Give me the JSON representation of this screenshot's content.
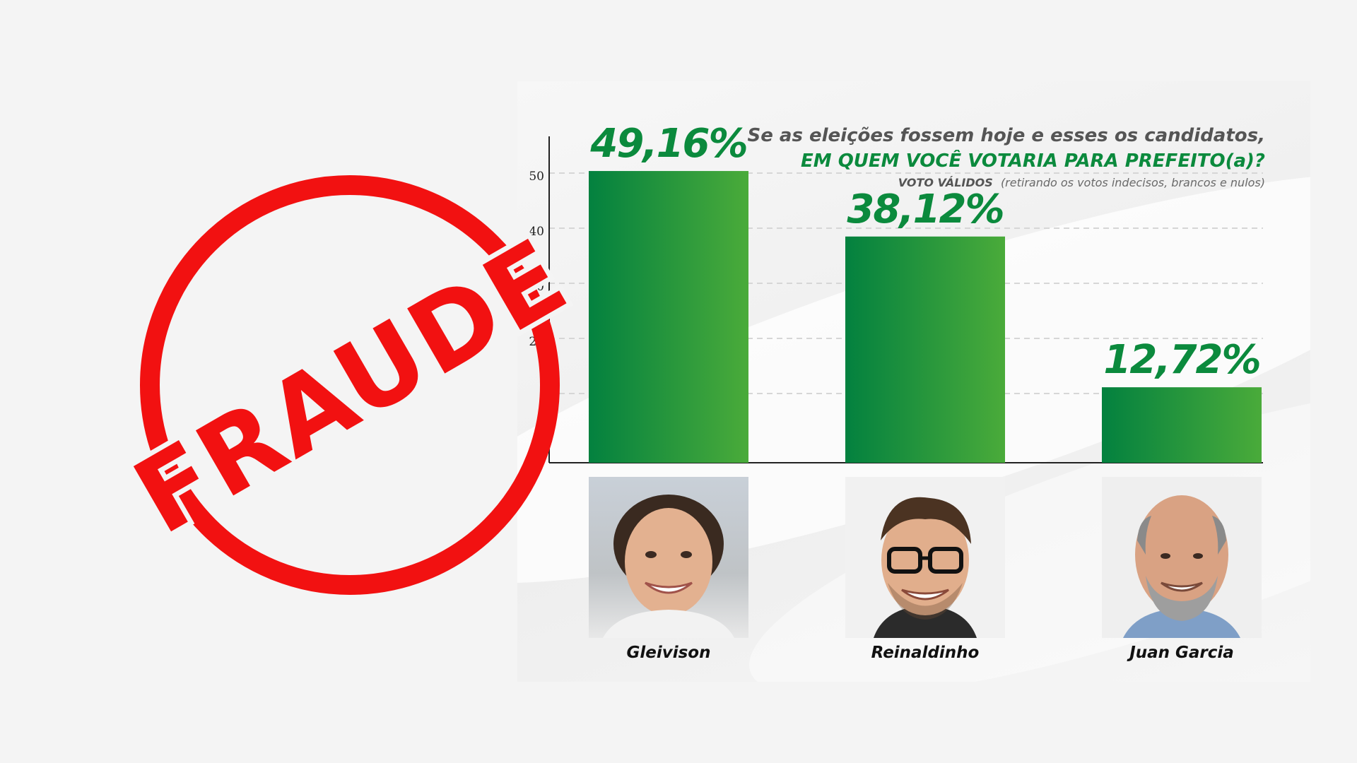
{
  "chart_data": {
    "type": "bar",
    "title": "Se as eleições fossem hoje e esses os candidatos,",
    "subtitle": "EM QUEM VOCÊ VOTARIA PARA PREFEITO(a)?",
    "note_lead": "VOTO VÁLIDOS",
    "note_rest": "(retirando os votos indecisos, brancos e nulos)",
    "categories": [
      "Gleivison",
      "Reinaldinho",
      "Juan Garcia"
    ],
    "values": [
      49.16,
      38.12,
      12.72
    ],
    "value_labels": [
      "49,16%",
      "38,12%",
      "12,72%"
    ],
    "yticks": [
      "50",
      "40",
      "30",
      "20"
    ],
    "ytick_values": [
      50,
      40,
      30,
      20
    ],
    "ylim": [
      0,
      50
    ],
    "grid": true,
    "bar_color_start": "#03813f",
    "bar_color_end": "#4aab3a"
  },
  "stamp": {
    "text": "FRAUDE",
    "color": "#f21111"
  },
  "photos": [
    {
      "icon": "candidate-photo-gleivison"
    },
    {
      "icon": "candidate-photo-reinaldinho"
    },
    {
      "icon": "candidate-photo-juan-garcia"
    }
  ]
}
